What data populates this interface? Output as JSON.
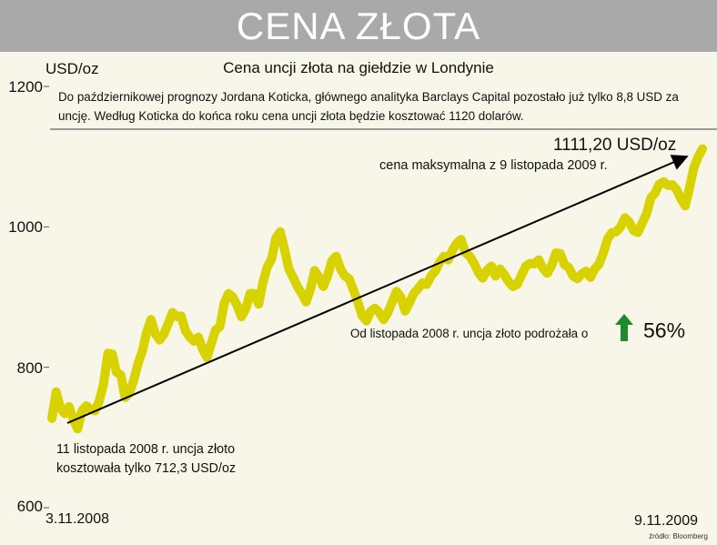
{
  "header": {
    "title": "CENA ZŁOTA"
  },
  "unit_label": "USD/oz",
  "note": "Do październikowej prognozy Jordana Koticka, głównego analityka Barclays Capital pozostało już tylko 8,8 USD za uncję.  Według Koticka do końca roku cena uncji złota będzie kosztować 1120 dolarów.",
  "annotations": {
    "max_value": "1111,20 USD/oz",
    "max_note": "cena maksymalna z 9 listopada 2009 r.",
    "rise_note": "Od listopada 2008 r. uncja złoto podrożała o",
    "rise_pct": "56%",
    "start_note": "11 listopada 2008 r. uncja złoto\nkosztowała tylko 712,3 USD/oz",
    "source": "źródło: Bloomberg"
  },
  "colors": {
    "banner": "#a9a9a9",
    "line": "#d8d200",
    "arrow_up": "#1e8a2e",
    "background": "#f7f6e8"
  },
  "chart_data": {
    "type": "line",
    "title": "Cena uncji złota na giełdzie w Londynie",
    "ylabel": "USD/oz",
    "ylim": [
      600,
      1200
    ],
    "yticks": [
      "600",
      "800",
      "1000",
      "1200"
    ],
    "xlim": [
      "2008-11-03",
      "2009-11-09"
    ],
    "xtick_labels": [
      "3.11.2008",
      "9.11.2009"
    ],
    "series": [
      {
        "values": [
          727,
          765,
          742,
          734,
          744,
          725,
          712.3,
          738,
          745,
          740,
          738,
          752,
          776,
          820,
          819,
          793,
          789,
          757,
          763,
          782,
          805,
          823,
          850,
          868,
          848,
          839,
          847,
          862,
          878,
          872,
          873,
          852,
          843,
          837,
          843,
          826,
          814,
          834,
          853,
          858,
          891,
          905,
          900,
          888,
          872,
          883,
          905,
          905,
          890,
          921,
          943,
          954,
          984,
          993,
          968,
          940,
          928,
          915,
          905,
          893,
          911,
          938,
          928,
          915,
          930,
          952,
          958,
          940,
          930,
          926,
          910,
          893,
          874,
          866,
          880,
          884,
          878,
          868,
          878,
          893,
          908,
          900,
          880,
          892,
          905,
          912,
          920,
          918,
          930,
          937,
          950,
          958,
          953,
          967,
          977,
          982,
          963,
          958,
          948,
          935,
          927,
          938,
          944,
          930,
          940,
          932,
          922,
          915,
          918,
          931,
          944,
          948,
          947,
          953,
          941,
          934,
          945,
          963,
          962,
          946,
          942,
          930,
          926,
          933,
          937,
          928,
          940,
          947,
          963,
          983,
          992,
          993,
          1000,
          1013,
          1007,
          995,
          992,
          1005,
          1018,
          1041,
          1048,
          1061,
          1064,
          1059,
          1060,
          1053,
          1040,
          1030,
          1056,
          1084,
          1100,
          1111.2
        ]
      }
    ]
  }
}
